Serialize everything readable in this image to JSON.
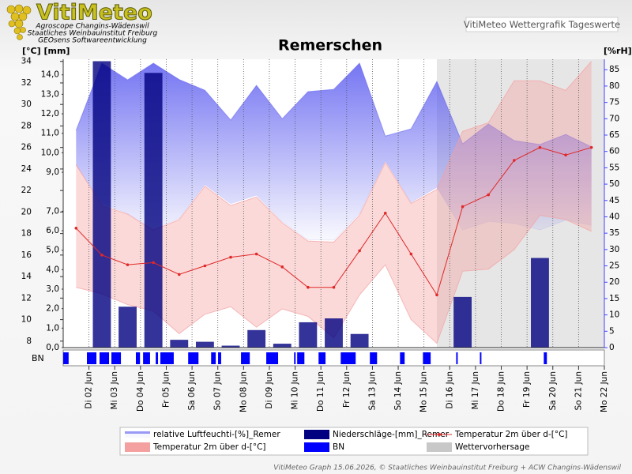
{
  "header": {
    "logo": "VitiMeteo",
    "lines": [
      "Agroscope Changins-Wädenswil",
      "Staatliches Weinbauinstitut Freiburg",
      "GEOsens Softwareentwicklung"
    ],
    "box": "VitiMeteo Wettergrafik Tageswerte"
  },
  "footer": "VitiMeteo Graph 15.06.2026, © Staatliches Weinbauinstitut Freiburg + ACW Changins-Wädenswil",
  "chart_data": {
    "type": "weather",
    "title": "Remerschen",
    "y_label": "[°C] [mm]",
    "y2_label": "[%rH]",
    "strip_label": "BN",
    "xlim": [
      0,
      21
    ],
    "xticks": [
      {
        "value": 1,
        "label": "Di 02 Jun"
      },
      {
        "value": 2,
        "label": "Mi 03 Jun"
      },
      {
        "value": 3,
        "label": "Do 04 Jun"
      },
      {
        "value": 4,
        "label": "Fr 05 Jun"
      },
      {
        "value": 5,
        "label": "Sa 06 Jun"
      },
      {
        "value": 6,
        "label": "So 07 Jun"
      },
      {
        "value": 7,
        "label": "Mo 08 Jun"
      },
      {
        "value": 8,
        "label": "Di 09 Jun"
      },
      {
        "value": 9,
        "label": "Mi 10 Jun"
      },
      {
        "value": 10,
        "label": "Do 11 Jun"
      },
      {
        "value": 11,
        "label": "Fr 12 Jun"
      },
      {
        "value": 12,
        "label": "Sa 13 Jun"
      },
      {
        "value": 13,
        "label": "So 14 Jun"
      },
      {
        "value": 14,
        "label": "Mo 15 Jun"
      },
      {
        "value": 15,
        "label": "Di 16 Jun"
      },
      {
        "value": 16,
        "label": "Mi 17 Jun"
      },
      {
        "value": 17,
        "label": "Do 18 Jun"
      },
      {
        "value": 18,
        "label": "Fr 19 Jun"
      },
      {
        "value": 19,
        "label": "Sa 20 Jun"
      },
      {
        "value": 20,
        "label": "So 21 Jun"
      },
      {
        "value": 21,
        "label": "Mo 22 Jun"
      }
    ],
    "x": [
      0.5,
      1.5,
      2.5,
      3.5,
      4.5,
      5.5,
      6.5,
      7.5,
      8.5,
      9.5,
      10.5,
      11.5,
      12.5,
      13.5,
      14.5,
      15.5,
      16.5,
      17.5,
      18.5,
      19.5,
      20.5
    ],
    "ylim": [
      7.4,
      34.2
    ],
    "yticks": [
      8,
      10,
      12,
      14,
      16,
      18,
      20,
      22,
      24,
      26,
      28,
      30,
      32,
      34
    ],
    "ymmlim": [
      0,
      14.8
    ],
    "ymmticks": [
      {
        "value": 0,
        "label": "0,0"
      },
      {
        "value": 1,
        "label": "1,0"
      },
      {
        "value": 2,
        "label": "2,0"
      },
      {
        "value": 3,
        "label": "3,0"
      },
      {
        "value": 4,
        "label": "4,0"
      },
      {
        "value": 5,
        "label": "5,0"
      },
      {
        "value": 6,
        "label": "6,0"
      },
      {
        "value": 7,
        "label": "7,0"
      },
      {
        "value": 9,
        "label": "9,0"
      },
      {
        "value": 10,
        "label": "10,0"
      },
      {
        "value": 11,
        "label": "11,0"
      },
      {
        "value": 12,
        "label": "12,0"
      },
      {
        "value": 13,
        "label": "13,0"
      },
      {
        "value": 14,
        "label": "14,0"
      }
    ],
    "y2lim": [
      0,
      88.2
    ],
    "y2ticks": [
      0,
      5,
      10,
      15,
      20,
      25,
      30,
      35,
      40,
      45,
      50,
      55,
      60,
      65,
      70,
      75,
      80,
      85
    ],
    "series": [
      {
        "name": "relative Luftfeuchti-[%]_Remer",
        "type": "band",
        "axis": "y2",
        "color": "#5a5af0",
        "high": [
          66.4,
          87.0,
          81.9,
          87.0,
          82.0,
          78.7,
          69.6,
          80.2,
          70.0,
          78.3,
          79.0,
          87.0,
          64.7,
          66.9,
          81.4,
          62.3,
          68.4,
          63.3,
          62.1,
          65.2,
          61.4
        ],
        "low": [
          55.8,
          44.0,
          41.0,
          36.0,
          39.6,
          49.8,
          44.0,
          46.6,
          38.6,
          33.0,
          32.9,
          41.0,
          57.0,
          44.4,
          49.0,
          36.0,
          38.6,
          38.0,
          36.0,
          39.0,
          37.4
        ]
      },
      {
        "name": "Niederschläge-[mm]_Remer",
        "type": "bar",
        "axis": "ymm",
        "color": "#000080",
        "values": [
          0,
          14.7,
          2.1,
          14.1,
          0.4,
          0.3,
          0.1,
          0.9,
          0.2,
          1.3,
          1.5,
          0.7,
          0,
          0,
          0,
          2.6,
          0,
          0,
          4.6,
          0,
          0
        ]
      },
      {
        "name": "Temperatur 2m über d-[°C]",
        "type": "line",
        "axis": "y",
        "color": "#e02828",
        "values": [
          18.5,
          16.0,
          15.1,
          15.3,
          14.2,
          15.0,
          15.8,
          16.1,
          14.9,
          13.0,
          13.0,
          16.4,
          19.9,
          16.1,
          12.3,
          20.5,
          21.6,
          24.8,
          26.0,
          25.3,
          26.0
        ]
      },
      {
        "name": "Temperatur 2m über d-[°C]",
        "type": "band",
        "axis": "y",
        "color": "#f4a0a0",
        "high": [
          24.4,
          20.6,
          19.8,
          18.3,
          19.3,
          22.4,
          20.6,
          21.4,
          19.0,
          17.3,
          17.2,
          19.7,
          24.6,
          20.8,
          22.1,
          27.5,
          28.3,
          32.2,
          32.2,
          31.3,
          34.0
        ],
        "low": [
          13.0,
          12.4,
          11.4,
          10.8,
          8.7,
          10.5,
          11.2,
          9.3,
          11.0,
          10.3,
          8.3,
          12.3,
          15.1,
          10.0,
          7.8,
          14.5,
          14.7,
          16.5,
          19.7,
          19.3,
          18.2
        ]
      },
      {
        "name": "BN",
        "type": "intervals",
        "color": "#0000ff",
        "intervals": [
          [
            0.0,
            0.21
          ],
          [
            0.92,
            1.29
          ],
          [
            1.41,
            1.78
          ],
          [
            1.87,
            2.24
          ],
          [
            2.82,
            2.98
          ],
          [
            3.1,
            3.37
          ],
          [
            3.59,
            3.68
          ],
          [
            3.77,
            4.29
          ],
          [
            4.85,
            5.25
          ],
          [
            5.74,
            5.92
          ],
          [
            6.01,
            6.13
          ],
          [
            6.9,
            7.24
          ],
          [
            7.88,
            8.34
          ],
          [
            8.96,
            9.02
          ],
          [
            9.08,
            9.36
          ],
          [
            9.91,
            10.18
          ],
          [
            10.77,
            11.35
          ],
          [
            11.9,
            12.18
          ],
          [
            13.07,
            13.25
          ],
          [
            13.96,
            14.26
          ],
          [
            15.25,
            15.31
          ],
          [
            16.17,
            16.23
          ],
          [
            18.65,
            18.77
          ]
        ]
      },
      {
        "name": "Wettervorhersage",
        "type": "region",
        "color": "#c8c8c8",
        "x_start": 14.5
      }
    ]
  }
}
